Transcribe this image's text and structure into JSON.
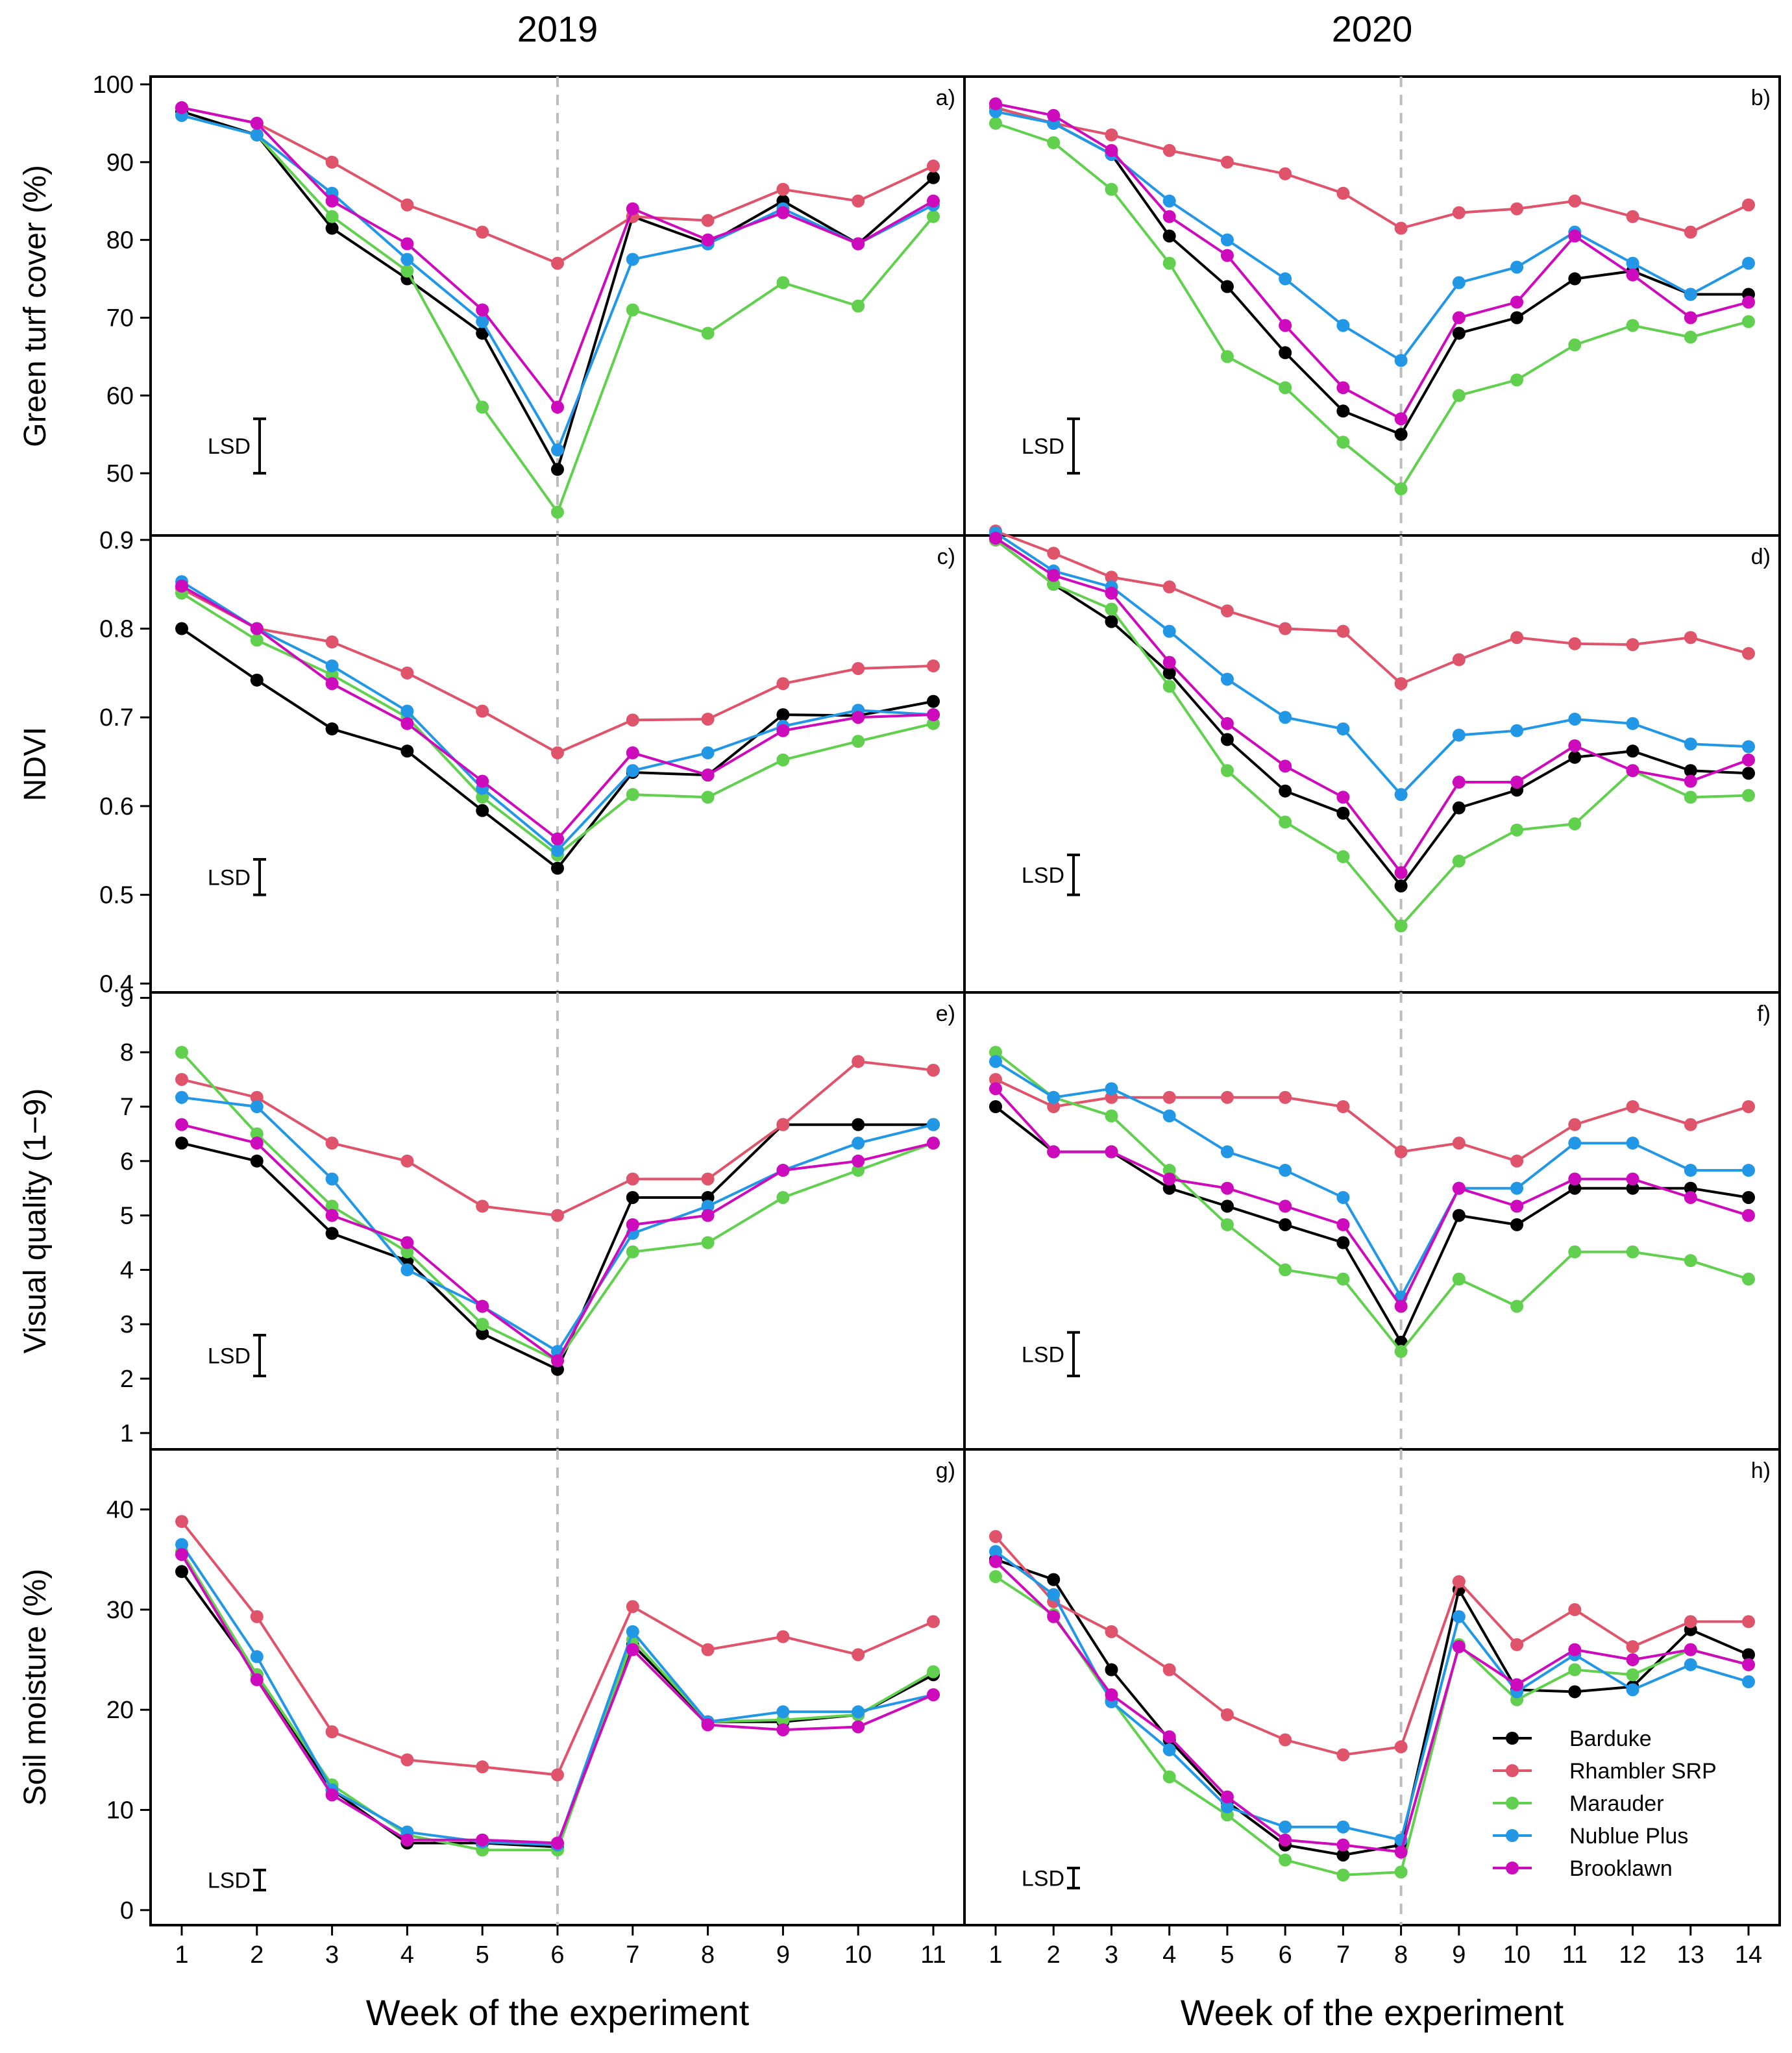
{
  "columns": [
    "2019",
    "2020"
  ],
  "x_axis_label": "Week of the experiment",
  "lsd_label": "LSD",
  "legend": [
    {
      "name": "Barduke",
      "color": "#000000"
    },
    {
      "name": "Rhambler SRP",
      "color": "#df536b"
    },
    {
      "name": "Marauder",
      "color": "#61d04f"
    },
    {
      "name": "Nublue Plus",
      "color": "#2297e6"
    },
    {
      "name": "Brooklawn",
      "color": "#cd0bbc"
    }
  ],
  "chart_data": [
    {
      "type": "line",
      "panel": "a)",
      "row": 0,
      "col": 0,
      "ylabel": "Green turf cover (%)",
      "x": [
        1,
        2,
        3,
        4,
        5,
        6,
        7,
        8,
        9,
        10,
        11
      ],
      "ylim": [
        42,
        101
      ],
      "yticks": [
        50,
        60,
        70,
        80,
        90,
        100
      ],
      "event_x": 6,
      "lsd": [
        57,
        50
      ],
      "series": [
        {
          "name": "Barduke",
          "values": [
            96.5,
            93.5,
            81.5,
            75,
            68,
            50.5,
            83,
            79.5,
            85,
            79.5,
            88
          ]
        },
        {
          "name": "Rhambler SRP",
          "values": [
            97,
            95,
            90,
            84.5,
            81,
            77,
            83,
            82.5,
            86.5,
            85,
            89.5
          ]
        },
        {
          "name": "Marauder",
          "values": [
            96,
            93.5,
            83,
            76,
            58.5,
            45,
            71,
            68,
            74.5,
            71.5,
            83
          ]
        },
        {
          "name": "Nublue Plus",
          "values": [
            96,
            93.5,
            86,
            77.5,
            69.5,
            53,
            77.5,
            79.5,
            84,
            79.5,
            84.5
          ]
        },
        {
          "name": "Brooklawn",
          "values": [
            97,
            95,
            85,
            79.5,
            71,
            58.5,
            84,
            80,
            83.5,
            79.5,
            85
          ]
        }
      ]
    },
    {
      "type": "line",
      "panel": "b)",
      "row": 0,
      "col": 1,
      "x": [
        1,
        2,
        3,
        4,
        5,
        6,
        7,
        8,
        9,
        10,
        11,
        12,
        13,
        14
      ],
      "ylim": [
        42,
        101
      ],
      "yticks": [
        50,
        60,
        70,
        80,
        90,
        100
      ],
      "event_x": 8,
      "lsd": [
        57,
        50
      ],
      "series": [
        {
          "name": "Barduke",
          "values": [
            97,
            95,
            91,
            80.5,
            74,
            65.5,
            58,
            55,
            68,
            70,
            75,
            76,
            73,
            73
          ]
        },
        {
          "name": "Rhambler SRP",
          "values": [
            97,
            95,
            93.5,
            91.5,
            90,
            88.5,
            86,
            81.5,
            83.5,
            84,
            85,
            83,
            81,
            84.5
          ]
        },
        {
          "name": "Marauder",
          "values": [
            95,
            92.5,
            86.5,
            77,
            65,
            61,
            54,
            48,
            60,
            62,
            66.5,
            69,
            67.5,
            69.5
          ]
        },
        {
          "name": "Nublue Plus",
          "values": [
            96.5,
            95,
            91,
            85,
            80,
            75,
            69,
            64.5,
            74.5,
            76.5,
            81,
            77,
            73,
            77
          ]
        },
        {
          "name": "Brooklawn",
          "values": [
            97.5,
            96,
            91.5,
            83,
            78,
            69,
            61,
            57,
            70,
            72,
            80.5,
            75.5,
            70,
            72
          ]
        }
      ]
    },
    {
      "type": "line",
      "panel": "c)",
      "row": 1,
      "col": 0,
      "ylabel": "NDVI",
      "x": [
        1,
        2,
        3,
        4,
        5,
        6,
        7,
        8,
        9,
        10,
        11
      ],
      "ylim": [
        0.39,
        0.905
      ],
      "yticks": [
        0.4,
        0.5,
        0.6,
        0.7,
        0.8,
        0.9
      ],
      "event_x": 6,
      "lsd": [
        0.54,
        0.5
      ],
      "series": [
        {
          "name": "Barduke",
          "values": [
            0.8,
            0.742,
            0.687,
            0.662,
            0.595,
            0.53,
            0.638,
            0.635,
            0.703,
            0.702,
            0.718
          ]
        },
        {
          "name": "Rhambler SRP",
          "values": [
            0.845,
            0.8,
            0.785,
            0.75,
            0.707,
            0.66,
            0.697,
            0.698,
            0.738,
            0.755,
            0.758
          ]
        },
        {
          "name": "Marauder",
          "values": [
            0.84,
            0.787,
            0.748,
            0.7,
            0.61,
            0.545,
            0.613,
            0.61,
            0.652,
            0.673,
            0.693
          ]
        },
        {
          "name": "Nublue Plus",
          "values": [
            0.853,
            0.8,
            0.758,
            0.707,
            0.62,
            0.55,
            0.64,
            0.66,
            0.69,
            0.708,
            0.703
          ]
        },
        {
          "name": "Brooklawn",
          "values": [
            0.848,
            0.8,
            0.738,
            0.693,
            0.628,
            0.563,
            0.66,
            0.635,
            0.685,
            0.7,
            0.703
          ]
        }
      ]
    },
    {
      "type": "line",
      "panel": "d)",
      "row": 1,
      "col": 1,
      "x": [
        1,
        2,
        3,
        4,
        5,
        6,
        7,
        8,
        9,
        10,
        11,
        12,
        13,
        14
      ],
      "ylim": [
        0.39,
        0.905
      ],
      "yticks": [
        0.4,
        0.5,
        0.6,
        0.7,
        0.8,
        0.9
      ],
      "event_x": 8,
      "lsd": [
        0.545,
        0.5
      ],
      "series": [
        {
          "name": "Barduke",
          "values": [
            0.9,
            0.85,
            0.808,
            0.75,
            0.675,
            0.617,
            0.592,
            0.51,
            0.598,
            0.618,
            0.655,
            0.662,
            0.64,
            0.637
          ]
        },
        {
          "name": "Rhambler SRP",
          "values": [
            0.91,
            0.885,
            0.858,
            0.847,
            0.82,
            0.8,
            0.797,
            0.738,
            0.765,
            0.79,
            0.783,
            0.782,
            0.79,
            0.772
          ]
        },
        {
          "name": "Marauder",
          "values": [
            0.9,
            0.85,
            0.822,
            0.735,
            0.64,
            0.582,
            0.543,
            0.465,
            0.538,
            0.573,
            0.58,
            0.64,
            0.61,
            0.612
          ]
        },
        {
          "name": "Nublue Plus",
          "values": [
            0.908,
            0.865,
            0.847,
            0.797,
            0.743,
            0.7,
            0.687,
            0.613,
            0.68,
            0.685,
            0.698,
            0.693,
            0.67,
            0.667
          ]
        },
        {
          "name": "Brooklawn",
          "values": [
            0.902,
            0.86,
            0.84,
            0.762,
            0.693,
            0.645,
            0.61,
            0.525,
            0.627,
            0.627,
            0.668,
            0.64,
            0.628,
            0.652
          ]
        }
      ]
    },
    {
      "type": "line",
      "panel": "e)",
      "row": 2,
      "col": 0,
      "ylabel": "Visual quality (1−9)",
      "x": [
        1,
        2,
        3,
        4,
        5,
        6,
        7,
        8,
        9,
        10,
        11
      ],
      "ylim": [
        0.7,
        9.1
      ],
      "yticks": [
        1,
        2,
        3,
        4,
        5,
        6,
        7,
        8,
        9
      ],
      "event_x": 6,
      "lsd": [
        2.8,
        2.05
      ],
      "series": [
        {
          "name": "Barduke",
          "values": [
            6.33,
            6,
            4.67,
            4.17,
            2.83,
            2.17,
            5.33,
            5.33,
            6.67,
            6.67,
            6.67
          ]
        },
        {
          "name": "Rhambler SRP",
          "values": [
            7.5,
            7.17,
            6.33,
            6,
            5.17,
            5,
            5.67,
            5.67,
            6.67,
            7.83,
            7.67
          ]
        },
        {
          "name": "Marauder",
          "values": [
            8,
            6.5,
            5.17,
            4.33,
            3,
            2.33,
            4.33,
            4.5,
            5.33,
            5.83,
            6.33
          ]
        },
        {
          "name": "Nublue Plus",
          "values": [
            7.17,
            7,
            5.67,
            4,
            3.33,
            2.5,
            4.67,
            5.17,
            5.83,
            6.33,
            6.67
          ]
        },
        {
          "name": "Brooklawn",
          "values": [
            6.67,
            6.33,
            5,
            4.5,
            3.33,
            2.33,
            4.83,
            5,
            5.83,
            6,
            6.33
          ]
        }
      ]
    },
    {
      "type": "line",
      "panel": "f)",
      "row": 2,
      "col": 1,
      "x": [
        1,
        2,
        3,
        4,
        5,
        6,
        7,
        8,
        9,
        10,
        11,
        12,
        13,
        14
      ],
      "ylim": [
        0.7,
        9.1
      ],
      "yticks": [
        1,
        2,
        3,
        4,
        5,
        6,
        7,
        8,
        9
      ],
      "event_x": 8,
      "lsd": [
        2.85,
        2.05
      ],
      "series": [
        {
          "name": "Barduke",
          "values": [
            7,
            6.17,
            6.17,
            5.5,
            5.17,
            4.83,
            4.5,
            2.67,
            5,
            4.83,
            5.5,
            5.5,
            5.5,
            5.33
          ]
        },
        {
          "name": "Rhambler SRP",
          "values": [
            7.5,
            7,
            7.17,
            7.17,
            7.17,
            7.17,
            7,
            6.17,
            6.33,
            6,
            6.67,
            7,
            6.67,
            7
          ]
        },
        {
          "name": "Marauder",
          "values": [
            8,
            7.17,
            6.83,
            5.83,
            4.83,
            4,
            3.83,
            2.5,
            3.83,
            3.33,
            4.33,
            4.33,
            4.17,
            3.83
          ]
        },
        {
          "name": "Nublue Plus",
          "values": [
            7.83,
            7.17,
            7.33,
            6.83,
            6.17,
            5.83,
            5.33,
            3.5,
            5.5,
            5.5,
            6.33,
            6.33,
            5.83,
            5.83
          ]
        },
        {
          "name": "Brooklawn",
          "values": [
            7.33,
            6.17,
            6.17,
            5.67,
            5.5,
            5.17,
            4.83,
            3.33,
            5.5,
            5.17,
            5.67,
            5.67,
            5.33,
            5
          ]
        }
      ]
    },
    {
      "type": "line",
      "panel": "g)",
      "row": 3,
      "col": 0,
      "ylabel": "Soil moisture (%)",
      "x": [
        1,
        2,
        3,
        4,
        5,
        6,
        7,
        8,
        9,
        10,
        11
      ],
      "ylim": [
        -1.5,
        46
      ],
      "yticks": [
        0,
        10,
        20,
        30,
        40
      ],
      "event_x": 6,
      "lsd": [
        4,
        2
      ],
      "series": [
        {
          "name": "Barduke",
          "values": [
            33.8,
            23.5,
            12,
            6.7,
            6.7,
            6.3,
            26.5,
            18.8,
            18.8,
            19.5,
            23.5
          ]
        },
        {
          "name": "Rhambler SRP",
          "values": [
            38.8,
            29.3,
            17.8,
            15,
            14.3,
            13.5,
            30.3,
            26,
            27.3,
            25.5,
            28.8
          ]
        },
        {
          "name": "Marauder",
          "values": [
            35.8,
            23.5,
            12.5,
            7.5,
            6,
            6,
            27,
            18.8,
            19,
            19.5,
            23.8
          ]
        },
        {
          "name": "Nublue Plus",
          "values": [
            36.5,
            25.3,
            12,
            7.8,
            6.8,
            6.5,
            27.8,
            18.8,
            19.8,
            19.8,
            21.5
          ]
        },
        {
          "name": "Brooklawn",
          "values": [
            35.5,
            23,
            11.5,
            7,
            7,
            6.7,
            26,
            18.5,
            18,
            18.3,
            21.5
          ]
        }
      ]
    },
    {
      "type": "line",
      "panel": "h)",
      "row": 3,
      "col": 1,
      "x": [
        1,
        2,
        3,
        4,
        5,
        6,
        7,
        8,
        9,
        10,
        11,
        12,
        13,
        14
      ],
      "ylim": [
        -1.5,
        46
      ],
      "yticks": [
        0,
        10,
        20,
        30,
        40
      ],
      "event_x": 8,
      "lsd": [
        4.2,
        2.2
      ],
      "series": [
        {
          "name": "Barduke",
          "values": [
            35,
            33,
            24,
            17,
            10.8,
            6.5,
            5.5,
            6.5,
            32,
            22,
            21.8,
            22.3,
            28,
            25.5
          ]
        },
        {
          "name": "Rhambler SRP",
          "values": [
            37.3,
            30.8,
            27.8,
            24,
            19.5,
            17,
            15.5,
            16.3,
            32.8,
            26.5,
            30,
            26.3,
            28.8,
            28.8
          ]
        },
        {
          "name": "Marauder",
          "values": [
            33.3,
            29.5,
            21,
            13.3,
            9.5,
            5,
            3.5,
            3.8,
            26.5,
            21,
            24,
            23.5,
            26,
            24.5
          ]
        },
        {
          "name": "Nublue Plus",
          "values": [
            35.8,
            31.5,
            20.8,
            16,
            10.3,
            8.3,
            8.3,
            7,
            29.3,
            21.8,
            25.5,
            22,
            24.5,
            22.8
          ]
        },
        {
          "name": "Brooklawn",
          "values": [
            34.8,
            29.3,
            21.5,
            17.3,
            11.3,
            7,
            6.5,
            5.8,
            26.3,
            22.5,
            26,
            25,
            26,
            24.5
          ]
        }
      ]
    }
  ]
}
